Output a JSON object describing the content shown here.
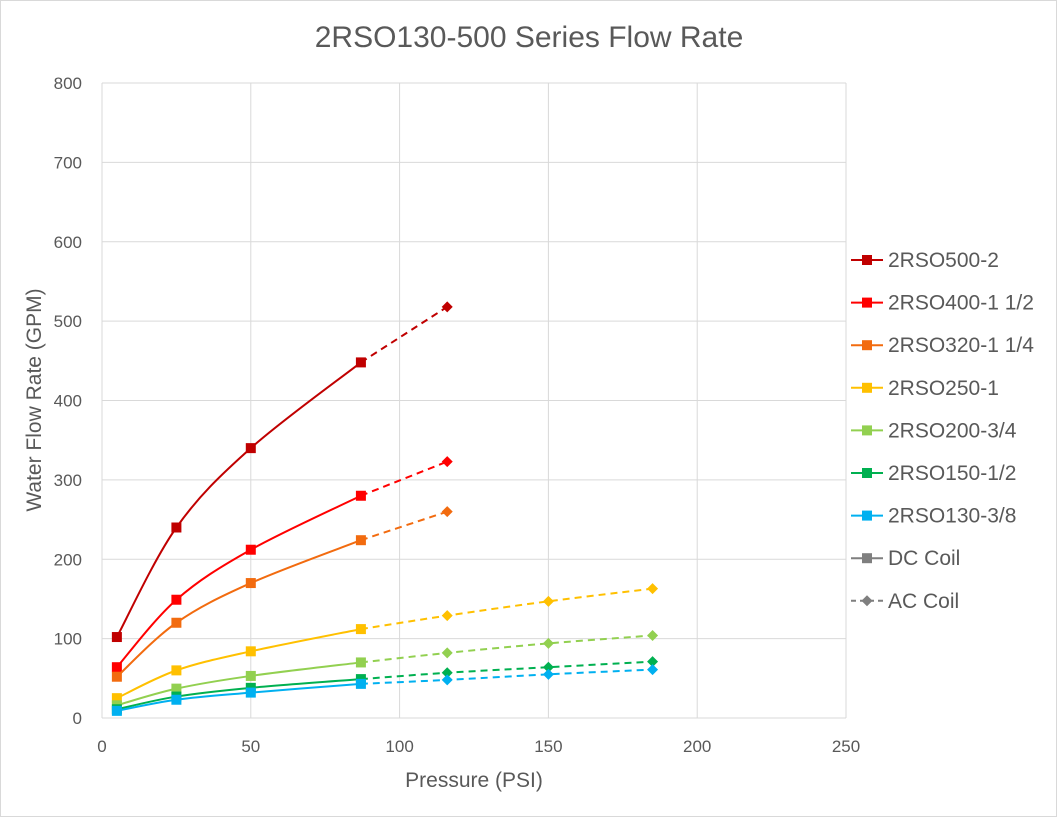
{
  "chart_data": {
    "type": "line",
    "title": "2RSO130-500 Series Flow Rate",
    "xlabel": "Pressure (PSI)",
    "ylabel": "Water Flow Rate (GPM)",
    "xlim": [
      0,
      250
    ],
    "ylim": [
      0,
      800
    ],
    "xticks": [
      "0",
      "50",
      "100",
      "150",
      "200",
      "250"
    ],
    "yticks": [
      "0",
      "100",
      "200",
      "300",
      "400",
      "500",
      "600",
      "700",
      "800"
    ],
    "grid": true,
    "legend_position": "right",
    "series": [
      {
        "name": "2RSO500-2",
        "color": "#c00000",
        "dc": [
          [
            5,
            102
          ],
          [
            25,
            240
          ],
          [
            50,
            340
          ],
          [
            87,
            448
          ]
        ],
        "ac": [
          [
            87,
            448
          ],
          [
            116,
            518
          ]
        ]
      },
      {
        "name": "2RSO400-1 1/2",
        "color": "#ff0000",
        "dc": [
          [
            5,
            64
          ],
          [
            25,
            149
          ],
          [
            50,
            212
          ],
          [
            87,
            280
          ]
        ],
        "ac": [
          [
            87,
            280
          ],
          [
            116,
            323
          ]
        ]
      },
      {
        "name": "2RSO320-1 1/4",
        "color": "#f26b0f",
        "dc": [
          [
            5,
            52
          ],
          [
            25,
            120
          ],
          [
            50,
            170
          ],
          [
            87,
            224
          ]
        ],
        "ac": [
          [
            87,
            224
          ],
          [
            116,
            260
          ]
        ]
      },
      {
        "name": "2RSO250-1",
        "color": "#ffc000",
        "dc": [
          [
            5,
            25
          ],
          [
            25,
            60
          ],
          [
            50,
            84
          ],
          [
            87,
            112
          ]
        ],
        "ac": [
          [
            87,
            112
          ],
          [
            116,
            129
          ],
          [
            150,
            147
          ],
          [
            185,
            163
          ]
        ]
      },
      {
        "name": "2RSO200-3/4",
        "color": "#92d050",
        "dc": [
          [
            5,
            16
          ],
          [
            25,
            37
          ],
          [
            50,
            53
          ],
          [
            87,
            70
          ]
        ],
        "ac": [
          [
            87,
            70
          ],
          [
            116,
            82
          ],
          [
            150,
            94
          ],
          [
            185,
            104
          ]
        ]
      },
      {
        "name": "2RSO150-1/2",
        "color": "#00b050",
        "dc": [
          [
            5,
            11
          ],
          [
            25,
            27
          ],
          [
            50,
            38
          ],
          [
            87,
            49
          ]
        ],
        "ac": [
          [
            87,
            49
          ],
          [
            116,
            57
          ],
          [
            150,
            64
          ],
          [
            185,
            71
          ]
        ]
      },
      {
        "name": "2RSO130-3/8",
        "color": "#00b0f0",
        "dc": [
          [
            5,
            9
          ],
          [
            25,
            23
          ],
          [
            50,
            32
          ],
          [
            87,
            43
          ]
        ],
        "ac": [
          [
            87,
            43
          ],
          [
            116,
            48
          ],
          [
            150,
            55
          ],
          [
            185,
            61
          ]
        ]
      }
    ],
    "marker_legend": [
      {
        "name": "DC Coil",
        "color": "#7f7f7f",
        "marker": "square",
        "dash": false
      },
      {
        "name": "AC Coil",
        "color": "#7f7f7f",
        "marker": "diamond",
        "dash": true
      }
    ]
  }
}
